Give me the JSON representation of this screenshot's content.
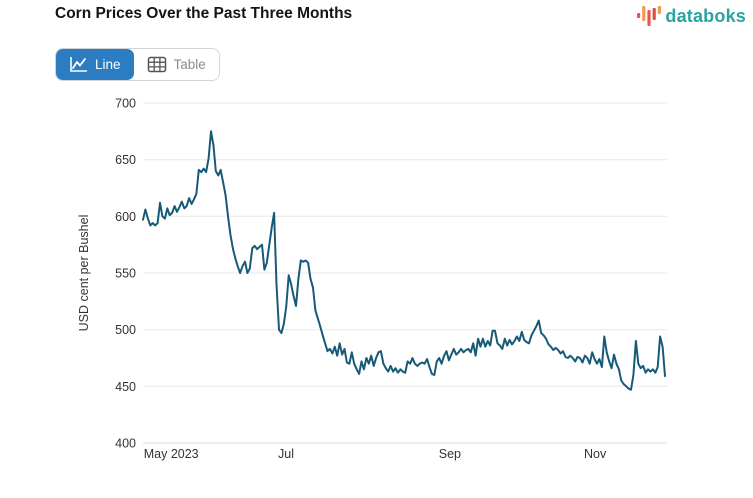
{
  "header": {
    "title": "Corn Prices Over the Past Three Months"
  },
  "logo": {
    "text": "databoks",
    "text_color": "#2ba3a0",
    "bar_colors": [
      "#e4574e",
      "#f09b4b",
      "#e4574e",
      "#d94f44",
      "#f09b4b"
    ]
  },
  "toolbar": {
    "line_label": "Line",
    "table_label": "Table",
    "active": "Line",
    "active_bg": "#2b7cc1"
  },
  "chart_data": {
    "type": "line",
    "title": "Corn Prices Over the Past Three Months",
    "xlabel": "",
    "ylabel": "USD cent per Bushel",
    "ylim": [
      400,
      700
    ],
    "yticks": [
      700,
      650,
      600,
      550,
      500,
      450,
      400
    ],
    "grid": "horizontal",
    "legend": "none",
    "line_color": "#175a78",
    "xticks": [
      {
        "label": "May 2023",
        "pos": 0.054
      },
      {
        "label": "Jul",
        "pos": 0.274
      },
      {
        "label": "Sep",
        "pos": 0.588
      },
      {
        "label": "Nov",
        "pos": 0.866
      }
    ],
    "values": [
      597,
      606,
      598,
      592,
      594,
      592,
      594,
      612,
      600,
      598,
      607,
      601,
      603,
      609,
      604,
      608,
      613,
      607,
      609,
      616,
      611,
      615,
      620,
      641,
      639,
      642,
      639,
      651,
      675,
      663,
      640,
      636,
      641,
      630,
      619,
      600,
      584,
      572,
      563,
      556,
      550,
      556,
      560,
      550,
      554,
      572,
      574,
      571,
      573,
      575,
      553,
      559,
      575,
      590,
      603,
      540,
      500,
      497,
      505,
      520,
      548,
      540,
      530,
      521,
      545,
      561,
      560,
      561,
      559,
      545,
      537,
      517,
      510,
      503,
      495,
      488,
      481,
      483,
      479,
      485,
      477,
      488,
      478,
      483,
      471,
      470,
      480,
      470,
      465,
      461,
      472,
      465,
      475,
      470,
      477,
      468,
      475,
      480,
      481,
      470,
      466,
      463,
      468,
      463,
      466,
      462,
      465,
      463,
      462,
      472,
      470,
      475,
      470,
      468,
      470,
      471,
      470,
      474,
      467,
      461,
      460,
      472,
      475,
      470,
      477,
      481,
      473,
      478,
      483,
      478,
      480,
      483,
      480,
      482,
      483,
      480,
      488,
      477,
      492,
      485,
      492,
      485,
      490,
      486,
      499,
      499,
      488,
      486,
      483,
      492,
      486,
      491,
      487,
      490,
      494,
      490,
      498,
      491,
      489,
      488,
      495,
      499,
      503,
      508,
      497,
      495,
      492,
      487,
      485,
      482,
      484,
      482,
      479,
      481,
      476,
      475,
      477,
      475,
      472,
      476,
      475,
      471,
      477,
      475,
      470,
      480,
      474,
      470,
      474,
      467,
      494,
      480,
      472,
      466,
      478,
      470,
      465,
      455,
      452,
      450,
      448,
      447,
      460,
      490,
      470,
      466,
      468,
      462,
      465,
      463,
      465,
      462,
      467,
      494,
      485,
      459
    ]
  }
}
